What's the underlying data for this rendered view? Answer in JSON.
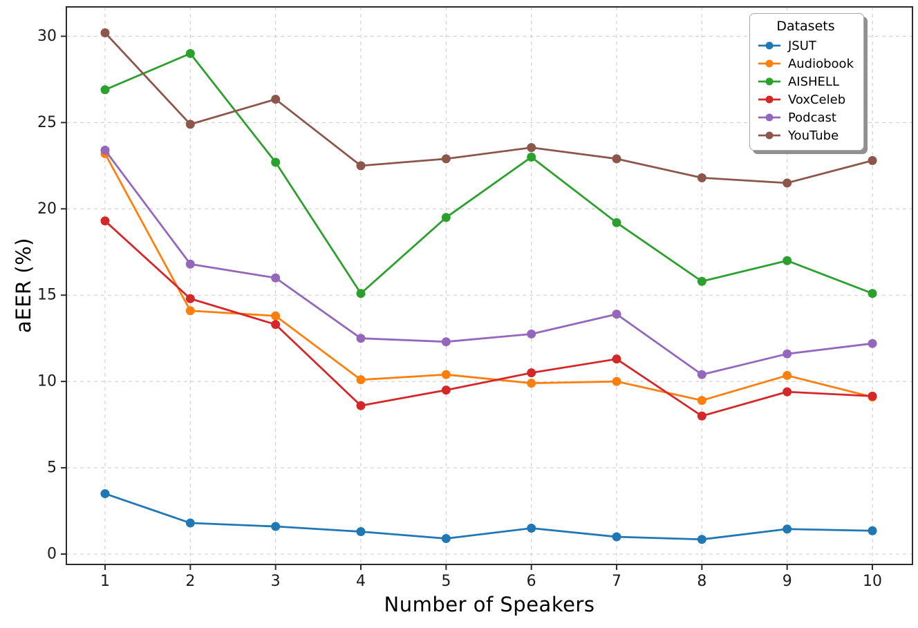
{
  "chart_data": {
    "type": "line",
    "title": "",
    "xlabel": "Number of Speakers",
    "ylabel": "aEER (%)",
    "x": [
      1,
      2,
      3,
      4,
      5,
      6,
      7,
      8,
      9,
      10
    ],
    "xticks": [
      1,
      2,
      3,
      4,
      5,
      6,
      7,
      8,
      9,
      10
    ],
    "yticks": [
      0,
      5,
      10,
      15,
      20,
      25,
      30
    ],
    "xlim": [
      0.546,
      10.47
    ],
    "ylim": [
      -0.6,
      31.7
    ],
    "grid": true,
    "grid_style": "dashed",
    "legend": {
      "title": "Datasets",
      "position": "upper right"
    },
    "series": [
      {
        "name": "JSUT",
        "color": "#1f77b4",
        "values": [
          3.5,
          1.8,
          1.6,
          1.3,
          0.9,
          1.5,
          1.0,
          0.85,
          1.45,
          1.35
        ]
      },
      {
        "name": "Audiobook",
        "color": "#ff7f0e",
        "values": [
          23.2,
          14.1,
          13.8,
          10.1,
          10.4,
          9.9,
          10.0,
          8.9,
          10.35,
          9.1
        ]
      },
      {
        "name": "AISHELL",
        "color": "#2ca02c",
        "values": [
          26.9,
          29.0,
          22.7,
          15.1,
          19.5,
          23.0,
          19.2,
          15.8,
          17.0,
          15.1
        ]
      },
      {
        "name": "VoxCeleb",
        "color": "#d62728",
        "values": [
          19.3,
          14.8,
          13.3,
          8.6,
          9.5,
          10.5,
          11.3,
          8.0,
          9.4,
          9.15
        ]
      },
      {
        "name": "Podcast",
        "color": "#9467bd",
        "values": [
          23.4,
          16.8,
          16.0,
          12.5,
          12.3,
          12.75,
          13.9,
          10.4,
          11.6,
          12.2
        ]
      },
      {
        "name": "YouTube",
        "color": "#8c564b",
        "values": [
          30.2,
          24.9,
          26.35,
          22.5,
          22.9,
          23.55,
          22.9,
          21.8,
          21.5,
          22.8
        ]
      }
    ],
    "style": {
      "spine_color": "#2b2b2b",
      "grid_color": "#c9c9c9",
      "tick_label_color": "#1a1a1a",
      "background": "#ffffff"
    }
  }
}
